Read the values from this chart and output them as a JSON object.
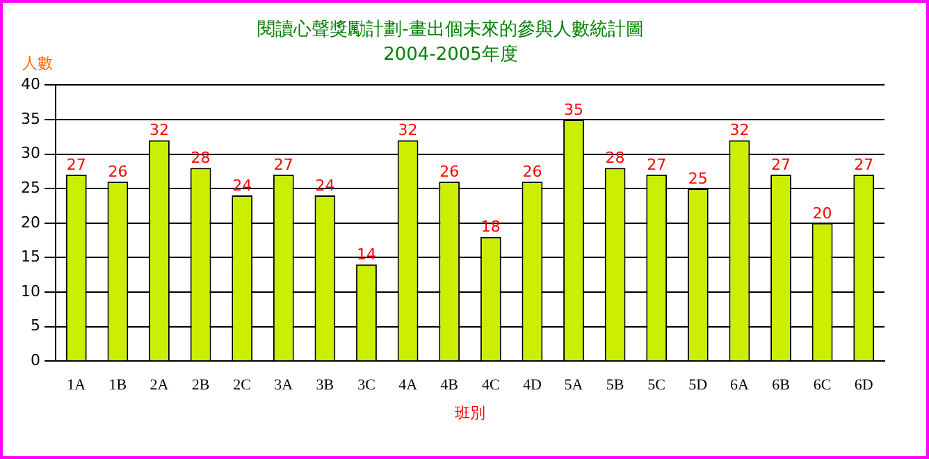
{
  "chart_data": {
    "type": "bar",
    "title": "閱讀心聲獎勵計劃-畫出個未來的參與人數統計圖",
    "subtitle": "2004-2005年度",
    "xlabel": "班別",
    "ylabel": "人數",
    "categories": [
      "1A",
      "1B",
      "2A",
      "2B",
      "2C",
      "3A",
      "3B",
      "3C",
      "4A",
      "4B",
      "4C",
      "4D",
      "5A",
      "5B",
      "5C",
      "5D",
      "6A",
      "6B",
      "6C",
      "6D"
    ],
    "values": [
      27,
      26,
      32,
      28,
      24,
      27,
      24,
      14,
      32,
      26,
      18,
      26,
      35,
      28,
      27,
      25,
      32,
      27,
      20,
      27
    ],
    "color": "#ccee00",
    "ylim": [
      0,
      40
    ],
    "yticks": [
      0,
      5,
      10,
      15,
      20,
      25,
      30,
      35,
      40
    ],
    "grid": "y",
    "data_labels": true,
    "legend": false
  }
}
